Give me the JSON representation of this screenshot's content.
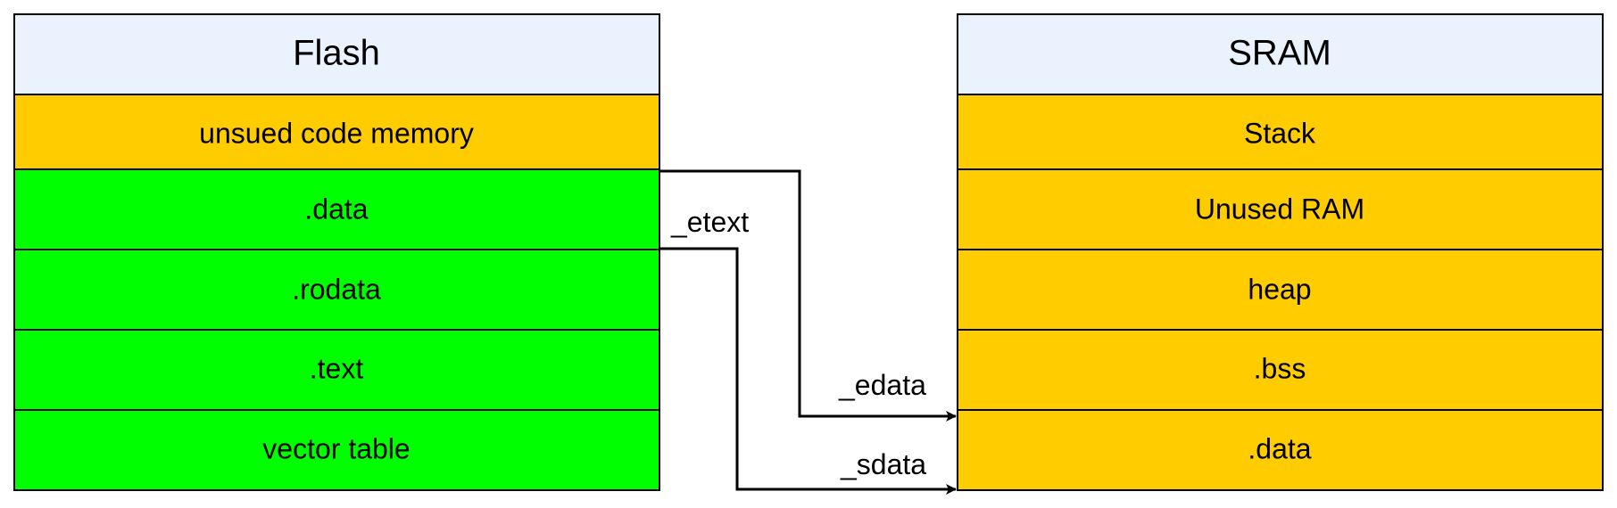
{
  "colors": {
    "header": "#eaf2fd",
    "orange": "#ffcc00",
    "green": "#00ff00",
    "stroke": "#000000"
  },
  "flash": {
    "title": "Flash",
    "segments": [
      {
        "label": "unsued code memory",
        "color": "orange"
      },
      {
        "label": ".data",
        "color": "orange"
      },
      {
        "label": ".rodata",
        "color": "green"
      },
      {
        "label": ".text",
        "color": "green"
      },
      {
        "label": "vector table",
        "color": "green"
      }
    ]
  },
  "sram": {
    "title": "SRAM",
    "segments": [
      {
        "label": "Stack",
        "color": "orange"
      },
      {
        "label": "Unused RAM",
        "color": "orange"
      },
      {
        "label": "heap",
        "color": "orange"
      },
      {
        "label": ".bss",
        "color": "orange"
      },
      {
        "label": ".data",
        "color": "orange"
      }
    ]
  },
  "connectors": {
    "etext": "_etext",
    "edata": "_edata",
    "sdata": "_sdata"
  }
}
